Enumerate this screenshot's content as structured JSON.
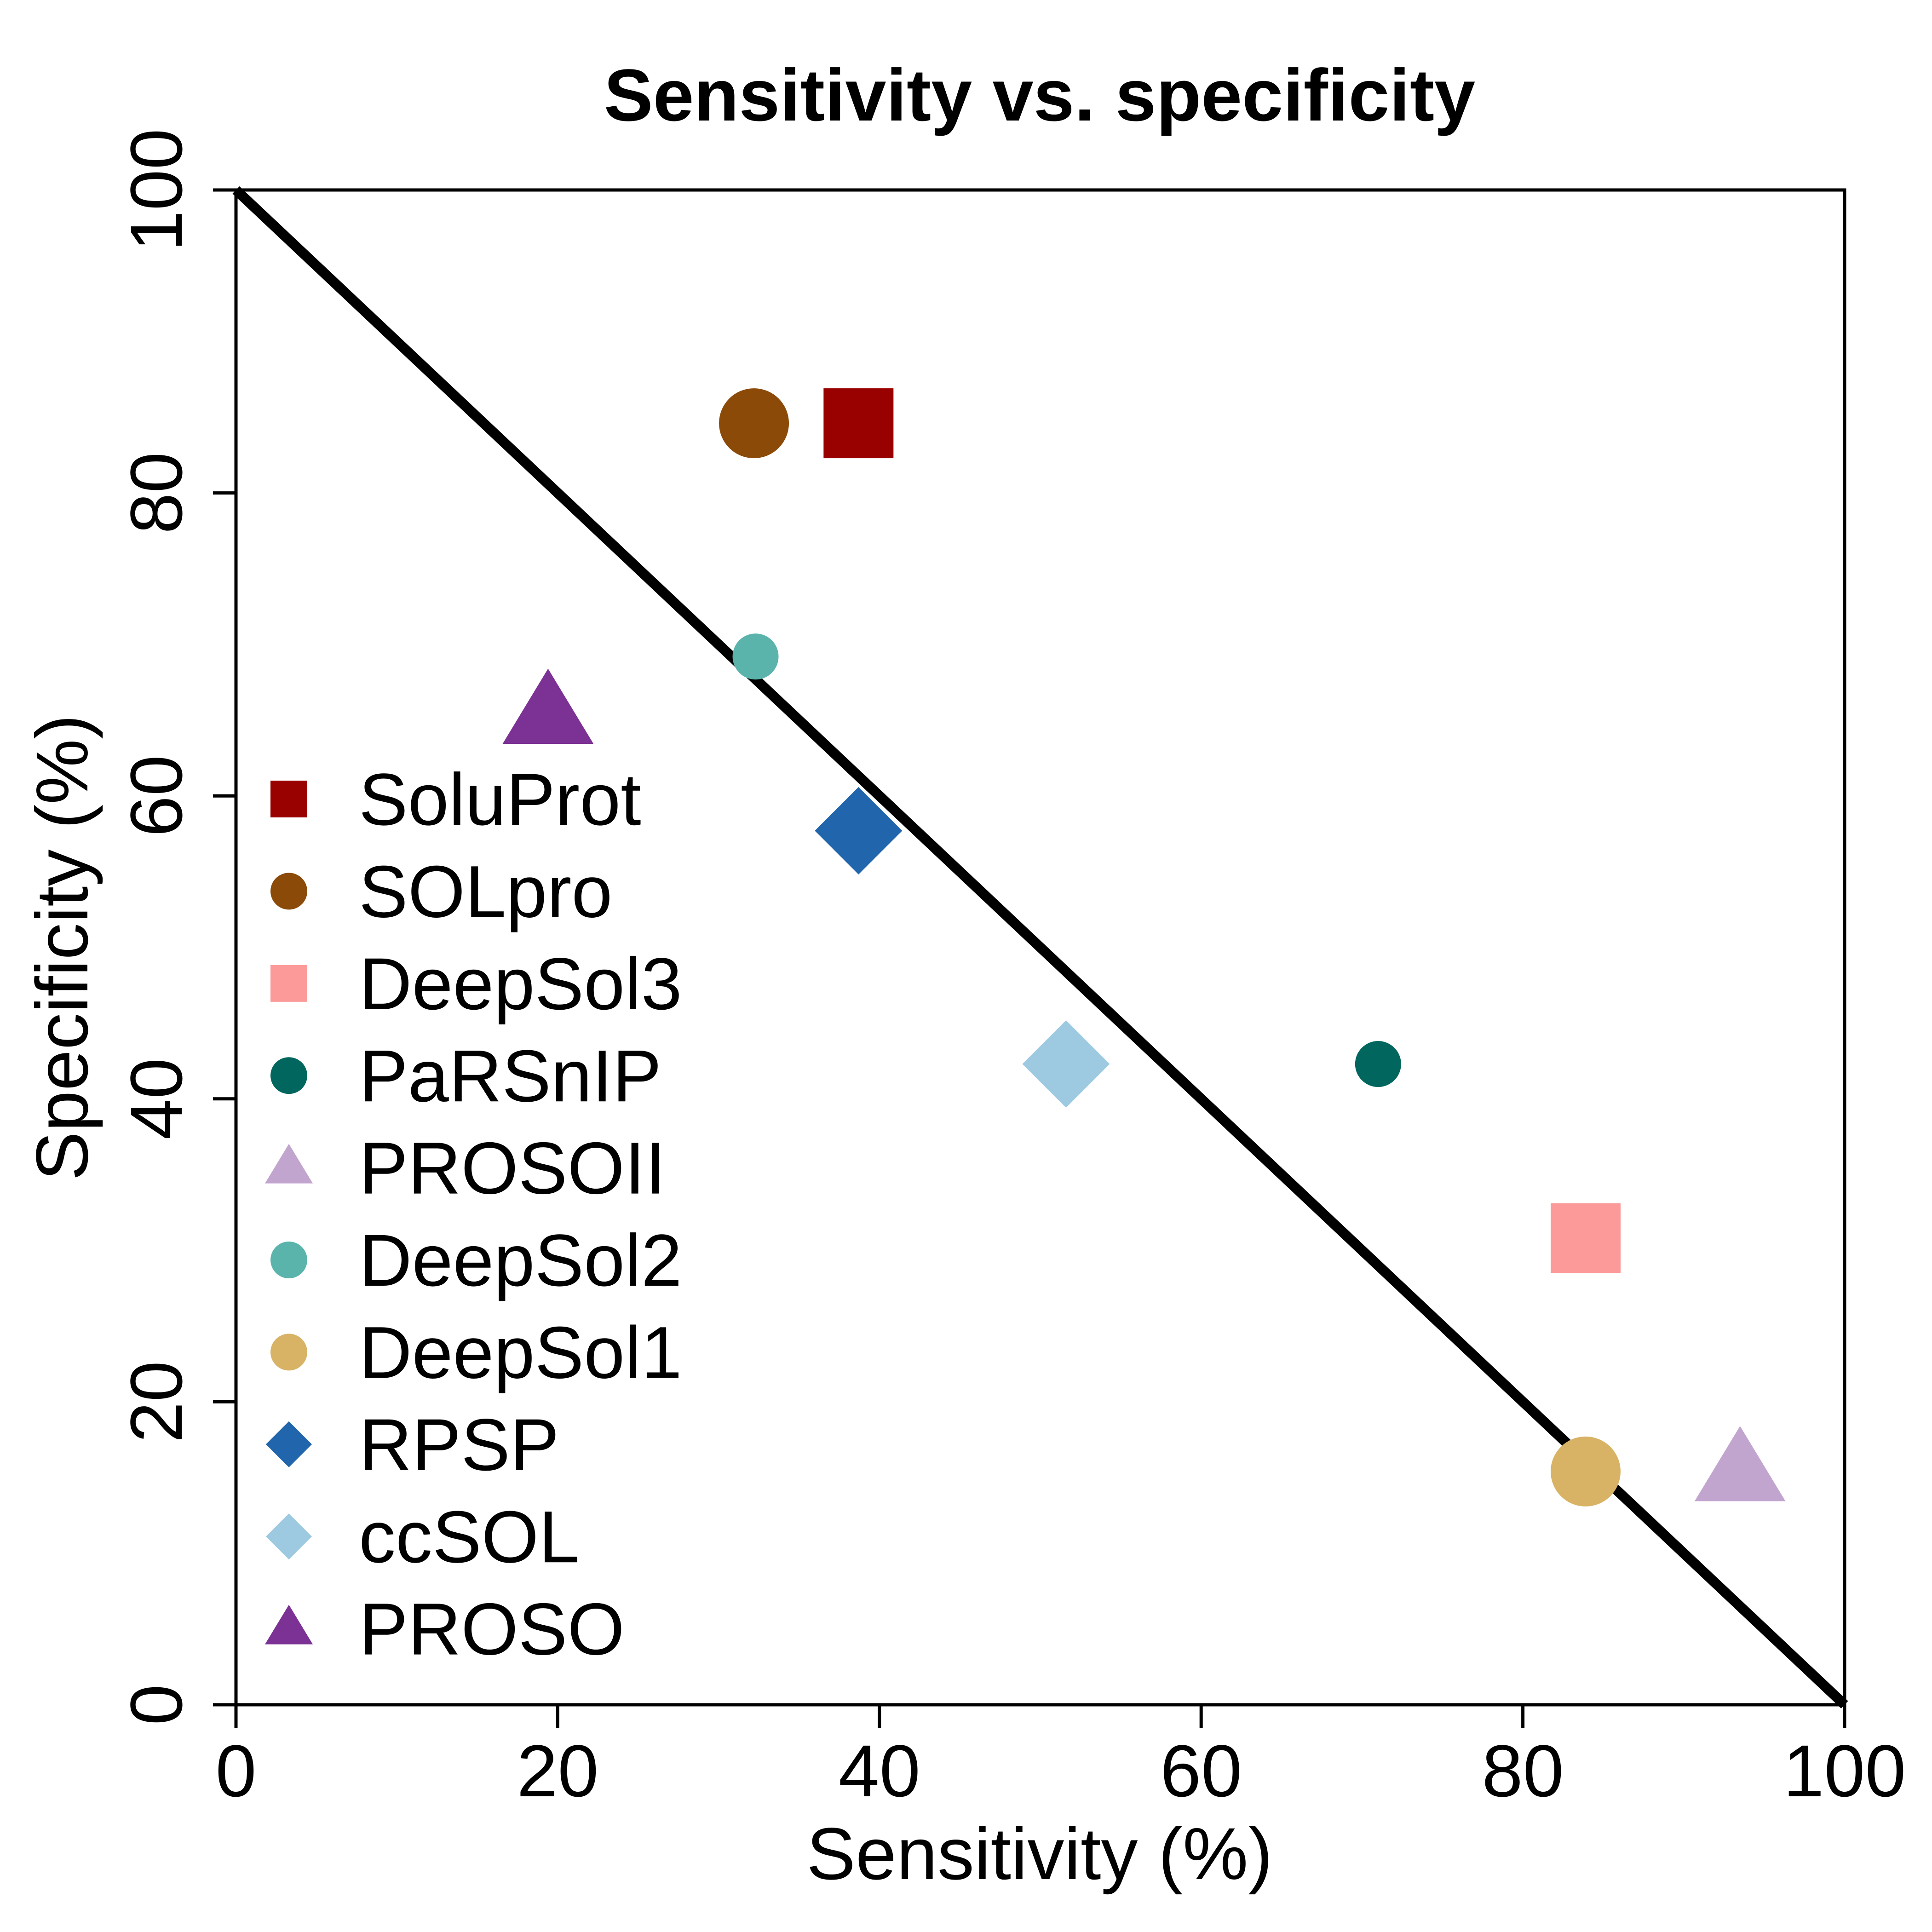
{
  "chart_data": {
    "type": "scatter",
    "title": "Sensitivity vs. specificity",
    "xlabel": "Sensitivity (%)",
    "ylabel": "Specificity (%)",
    "xlim": [
      0,
      100
    ],
    "ylim": [
      0,
      100
    ],
    "xticks": [
      "0",
      "20",
      "40",
      "60",
      "80",
      "100"
    ],
    "yticks": [
      "0",
      "20",
      "40",
      "60",
      "80",
      "100"
    ],
    "reference_line": {
      "x": [
        0,
        100
      ],
      "y": [
        100,
        0
      ],
      "color": "#000000"
    },
    "legend_placement": "left",
    "series": [
      {
        "name": "SoluProt",
        "x": 38.7,
        "y": 84.6,
        "shape": "square",
        "color": "#990000",
        "size": "large"
      },
      {
        "name": "SOLpro",
        "x": 32.2,
        "y": 84.6,
        "shape": "circle",
        "color": "#8B4A08",
        "size": "large"
      },
      {
        "name": "DeepSol3",
        "x": 83.9,
        "y": 30.8,
        "shape": "square",
        "color": "#FB9A99",
        "size": "large"
      },
      {
        "name": "PaRSnIP",
        "x": 71.0,
        "y": 42.3,
        "shape": "circle",
        "color": "#01665E",
        "size": "small"
      },
      {
        "name": "PROSOII",
        "x": 93.5,
        "y": 15.4,
        "shape": "triangle",
        "color": "#C2A5CF",
        "size": "large"
      },
      {
        "name": "DeepSol2",
        "x": 32.3,
        "y": 69.2,
        "shape": "circle",
        "color": "#5AB4AC",
        "size": "small"
      },
      {
        "name": "DeepSol1",
        "x": 83.9,
        "y": 15.4,
        "shape": "circle",
        "color": "#D8B365",
        "size": "large"
      },
      {
        "name": "RPSP",
        "x": 38.7,
        "y": 57.7,
        "shape": "diamond",
        "color": "#2166AC",
        "size": "large"
      },
      {
        "name": "ccSOL",
        "x": 51.6,
        "y": 42.3,
        "shape": "diamond",
        "color": "#9ECAE1",
        "size": "large"
      },
      {
        "name": "PROSO",
        "x": 19.4,
        "y": 65.4,
        "shape": "triangle",
        "color": "#7B3294",
        "size": "large"
      }
    ]
  }
}
